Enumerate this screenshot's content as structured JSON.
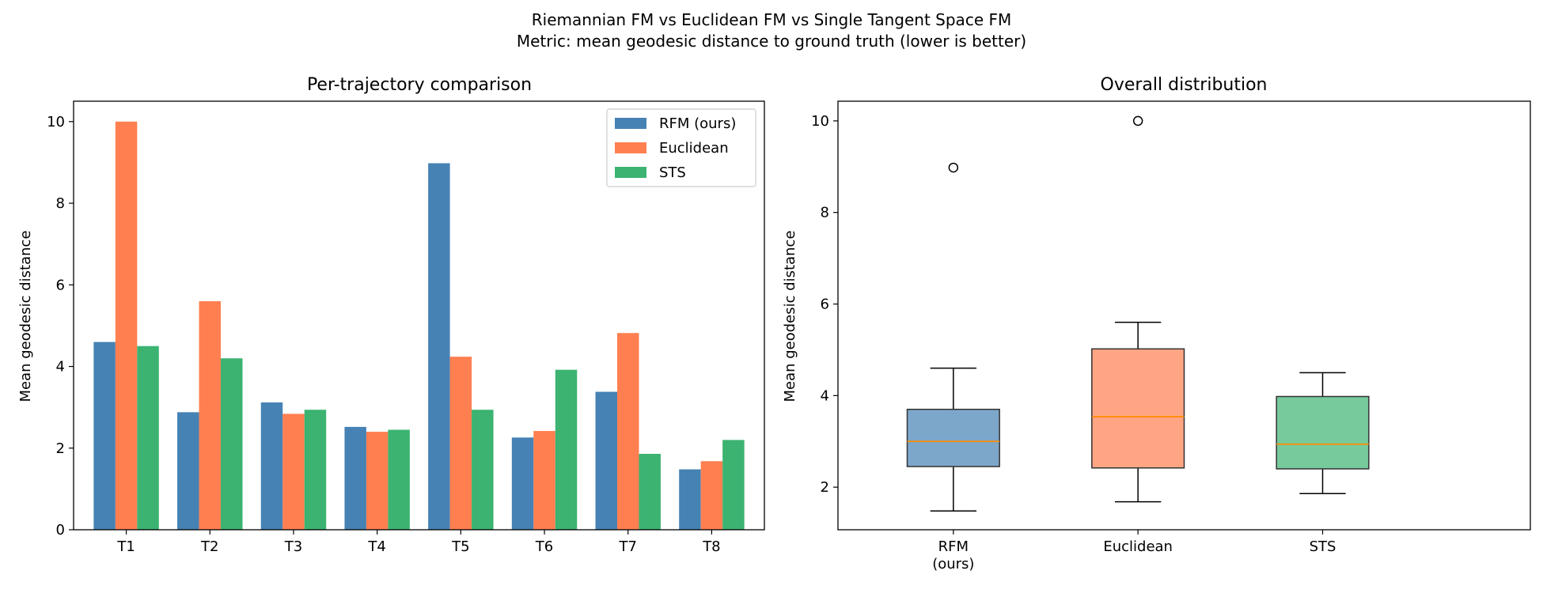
{
  "figure": {
    "suptitle_line1": "Riemannian FM vs Euclidean FM vs Single Tangent Space FM",
    "suptitle_line2": "Metric: mean geodesic distance to ground truth (lower is better)"
  },
  "chart_data": [
    {
      "type": "bar",
      "title": "Per-trajectory comparison",
      "xlabel": "",
      "ylabel": "Mean geodesic distance",
      "categories": [
        "T1",
        "T2",
        "T3",
        "T4",
        "T5",
        "T6",
        "T7",
        "T8"
      ],
      "series": [
        {
          "name": "RFM (ours)",
          "color": "#4682b4",
          "values": [
            4.6,
            2.88,
            3.12,
            2.52,
            8.98,
            2.26,
            3.38,
            1.48
          ]
        },
        {
          "name": "Euclidean",
          "color": "#ff7f50",
          "values": [
            10.0,
            5.6,
            2.84,
            2.4,
            4.24,
            2.42,
            4.82,
            1.68
          ]
        },
        {
          "name": "STS",
          "color": "#3cb371",
          "values": [
            4.5,
            4.2,
            2.94,
            2.45,
            2.94,
            3.92,
            1.86,
            2.2
          ]
        }
      ],
      "ylim": [
        0,
        10.5
      ],
      "yticks": [
        0,
        2,
        4,
        6,
        8,
        10
      ],
      "legend": "top-right",
      "grid": false
    },
    {
      "type": "box",
      "title": "Overall distribution",
      "xlabel": "",
      "ylabel": "Mean geodesic distance",
      "categories": [
        "RFM\n(ours)",
        "Euclidean",
        "STS"
      ],
      "boxes": [
        {
          "label": "RFM\n(ours)",
          "color": "#4682b4",
          "whisker_low": 1.48,
          "q1": 2.45,
          "median": 3.0,
          "q3": 3.7,
          "whisker_high": 4.6,
          "outliers": [
            8.98
          ]
        },
        {
          "label": "Euclidean",
          "color": "#ff7f50",
          "whisker_low": 1.68,
          "q1": 2.42,
          "median": 3.54,
          "q3": 5.02,
          "whisker_high": 5.6,
          "outliers": [
            10.0
          ]
        },
        {
          "label": "STS",
          "color": "#3cb371",
          "whisker_low": 1.86,
          "q1": 2.4,
          "median": 2.94,
          "q3": 3.98,
          "whisker_high": 4.5,
          "outliers": []
        }
      ],
      "ylim": [
        1.07,
        10.43
      ],
      "yticks": [
        2,
        4,
        6,
        8,
        10
      ],
      "median_color": "#ff8c00",
      "grid": false
    }
  ]
}
